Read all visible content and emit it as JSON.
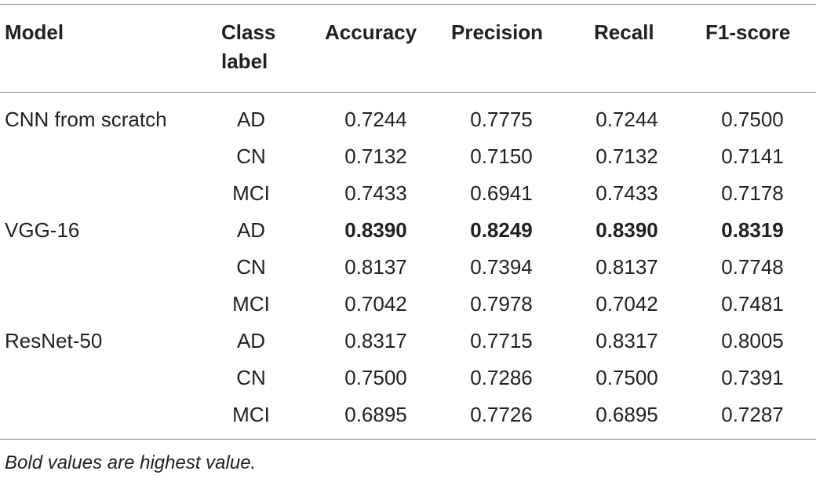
{
  "table": {
    "headers": {
      "model": "Model",
      "class_line1": "Class",
      "class_line2": "label",
      "accuracy": "Accuracy",
      "precision": "Precision",
      "recall": "Recall",
      "f1": "F1-score"
    },
    "rows": [
      {
        "model": "CNN from scratch",
        "class": "AD",
        "accuracy": "0.7244",
        "precision": "0.7775",
        "recall": "0.7244",
        "f1": "0.7500",
        "bold": false
      },
      {
        "model": "",
        "class": "CN",
        "accuracy": "0.7132",
        "precision": "0.7150",
        "recall": "0.7132",
        "f1": "0.7141",
        "bold": false
      },
      {
        "model": "",
        "class": "MCI",
        "accuracy": "0.7433",
        "precision": "0.6941",
        "recall": "0.7433",
        "f1": "0.7178",
        "bold": false
      },
      {
        "model": "VGG-16",
        "class": "AD",
        "accuracy": "0.8390",
        "precision": "0.8249",
        "recall": "0.8390",
        "f1": "0.8319",
        "bold": true
      },
      {
        "model": "",
        "class": "CN",
        "accuracy": "0.8137",
        "precision": "0.7394",
        "recall": "0.8137",
        "f1": "0.7748",
        "bold": false
      },
      {
        "model": "",
        "class": "MCI",
        "accuracy": "0.7042",
        "precision": "0.7978",
        "recall": "0.7042",
        "f1": "0.7481",
        "bold": false
      },
      {
        "model": "ResNet-50",
        "class": "AD",
        "accuracy": "0.8317",
        "precision": "0.7715",
        "recall": "0.8317",
        "f1": "0.8005",
        "bold": false
      },
      {
        "model": "",
        "class": "CN",
        "accuracy": "0.7500",
        "precision": "0.7286",
        "recall": "0.7500",
        "f1": "0.7391",
        "bold": false
      },
      {
        "model": "",
        "class": "MCI",
        "accuracy": "0.6895",
        "precision": "0.7726",
        "recall": "0.6895",
        "f1": "0.7287",
        "bold": false
      }
    ],
    "footnote": "Bold values are highest value."
  }
}
